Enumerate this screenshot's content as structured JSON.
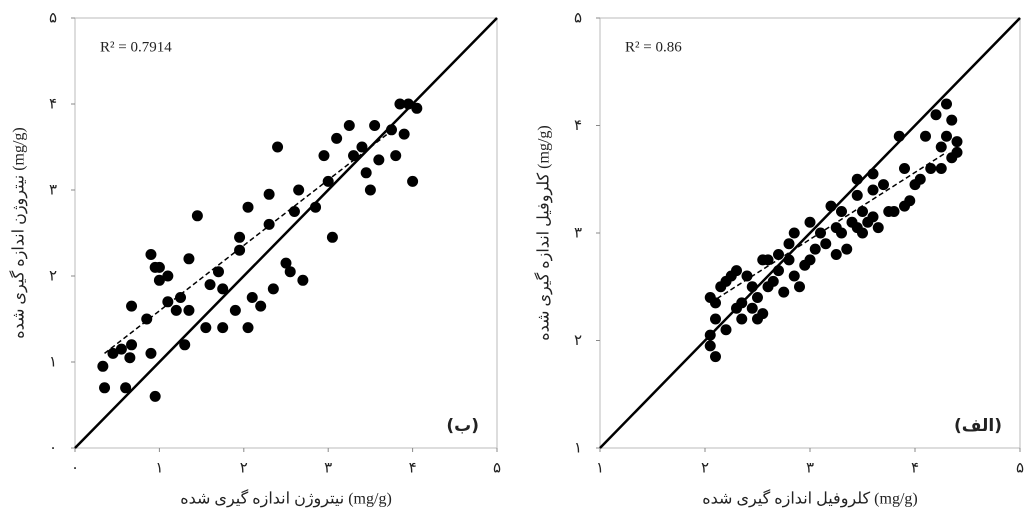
{
  "chart_data": [
    {
      "type": "scatter",
      "xlabel": "نیتروژن اندازه گیری شده (mg/g)",
      "ylabel": "نیتروژن اندازه گیری شده (mg/g)",
      "annotation": "R² = 0.7914",
      "panel_label": "(ب)",
      "color": "#000000",
      "identity_line": true,
      "xlim": [
        0,
        5
      ],
      "ylim": [
        0,
        5
      ],
      "xticks": [
        {
          "value": 0,
          "label": "۰"
        },
        {
          "value": 1,
          "label": "۱"
        },
        {
          "value": 2,
          "label": "۲"
        },
        {
          "value": 3,
          "label": "۳"
        },
        {
          "value": 4,
          "label": "۴"
        },
        {
          "value": 5,
          "label": "۵"
        }
      ],
      "yticks": [
        {
          "value": 0,
          "label": "۰"
        },
        {
          "value": 1,
          "label": "۱"
        },
        {
          "value": 2,
          "label": "۲"
        },
        {
          "value": 3,
          "label": "۳"
        },
        {
          "value": 4,
          "label": "۴"
        },
        {
          "value": 5,
          "label": "۵"
        }
      ],
      "x": [
        0.33,
        0.35,
        0.45,
        0.55,
        0.6,
        0.65,
        0.67,
        0.67,
        0.85,
        0.9,
        0.95,
        0.9,
        0.95,
        1.0,
        1.1,
        1.1,
        1.2,
        1.25,
        1.3,
        1.35,
        1.35,
        1.45,
        1.55,
        1.6,
        1.7,
        1.75,
        1.75,
        1.9,
        1.95,
        1.95,
        2.05,
        2.05,
        2.1,
        2.2,
        2.3,
        2.3,
        2.35,
        2.5,
        2.55,
        2.6,
        2.65,
        2.7,
        2.85,
        2.95,
        3.0,
        3.05,
        3.1,
        3.25,
        3.3,
        3.4,
        3.45,
        3.5,
        3.55,
        3.6,
        3.75,
        3.8,
        3.85,
        3.9,
        3.95,
        4.05,
        4.0,
        2.4,
        1.0
      ],
      "values": [
        0.95,
        0.7,
        1.1,
        1.15,
        0.7,
        1.05,
        1.2,
        1.65,
        1.5,
        1.1,
        0.6,
        2.25,
        2.1,
        1.95,
        2.0,
        1.7,
        1.6,
        1.75,
        1.2,
        1.6,
        2.2,
        2.7,
        1.4,
        1.9,
        2.05,
        1.4,
        1.85,
        1.6,
        2.45,
        2.3,
        2.8,
        1.4,
        1.75,
        1.65,
        2.6,
        2.95,
        1.85,
        2.15,
        2.05,
        2.75,
        3.0,
        1.95,
        2.8,
        3.4,
        3.1,
        2.45,
        3.6,
        3.75,
        3.4,
        3.5,
        3.2,
        3.0,
        3.75,
        3.35,
        3.7,
        3.4,
        4.0,
        3.65,
        4.0,
        3.95,
        3.1,
        3.5,
        2.1
      ],
      "trendline": {
        "x": [
          0.35,
          3.7
        ],
        "y": [
          1.1,
          3.65
        ]
      }
    },
    {
      "type": "scatter",
      "xlabel": "کلروفیل اندازه گیری شده (mg/g)",
      "ylabel": "کلروفیل اندازه گیری شده (mg/g)",
      "annotation": "R² = 0.86",
      "panel_label": "(الف)",
      "color": "#000000",
      "identity_line": true,
      "xlim": [
        1,
        5
      ],
      "ylim": [
        1,
        5
      ],
      "xticks": [
        {
          "value": 1,
          "label": "۱"
        },
        {
          "value": 2,
          "label": "۲"
        },
        {
          "value": 3,
          "label": "۳"
        },
        {
          "value": 4,
          "label": "۴"
        },
        {
          "value": 5,
          "label": "۵"
        }
      ],
      "yticks": [
        {
          "value": 1,
          "label": "۱"
        },
        {
          "value": 2,
          "label": "۲"
        },
        {
          "value": 3,
          "label": "۳"
        },
        {
          "value": 4,
          "label": "۴"
        },
        {
          "value": 5,
          "label": "۵"
        }
      ],
      "x": [
        2.05,
        2.05,
        2.1,
        2.05,
        2.1,
        2.1,
        2.15,
        2.2,
        2.2,
        2.25,
        2.3,
        2.3,
        2.35,
        2.35,
        2.4,
        2.45,
        2.45,
        2.5,
        2.5,
        2.55,
        2.55,
        2.6,
        2.6,
        2.65,
        2.7,
        2.7,
        2.75,
        2.8,
        2.8,
        2.85,
        2.85,
        2.9,
        2.95,
        3.0,
        3.05,
        3.1,
        3.15,
        3.2,
        3.25,
        3.25,
        3.3,
        3.3,
        3.35,
        3.4,
        3.45,
        3.45,
        3.5,
        3.5,
        3.55,
        3.6,
        3.6,
        3.65,
        3.7,
        3.75,
        3.8,
        3.85,
        3.9,
        3.9,
        3.95,
        4.0,
        4.05,
        4.1,
        4.15,
        4.2,
        4.25,
        4.25,
        4.3,
        4.3,
        4.35,
        4.35,
        4.4,
        4.4,
        3.45,
        3.6,
        3.0
      ],
      "values": [
        2.05,
        1.95,
        1.85,
        2.4,
        2.35,
        2.2,
        2.5,
        2.55,
        2.1,
        2.6,
        2.65,
        2.3,
        2.35,
        2.2,
        2.6,
        2.3,
        2.5,
        2.4,
        2.2,
        2.25,
        2.75,
        2.5,
        2.75,
        2.55,
        2.65,
        2.8,
        2.45,
        2.75,
        2.9,
        2.6,
        3.0,
        2.5,
        2.7,
        2.75,
        2.85,
        3.0,
        2.9,
        3.25,
        3.05,
        2.8,
        3.2,
        3.0,
        2.85,
        3.1,
        3.35,
        3.05,
        3.2,
        3.0,
        3.1,
        3.4,
        3.15,
        3.05,
        3.45,
        3.2,
        3.2,
        3.9,
        3.6,
        3.25,
        3.3,
        3.45,
        3.5,
        3.9,
        3.6,
        4.1,
        3.8,
        3.6,
        4.2,
        3.9,
        3.7,
        4.05,
        3.75,
        3.85,
        3.5,
        3.55,
        3.1
      ],
      "trendline": {
        "x": [
          2.05,
          4.3
        ],
        "y": [
          2.35,
          3.75
        ]
      }
    }
  ]
}
